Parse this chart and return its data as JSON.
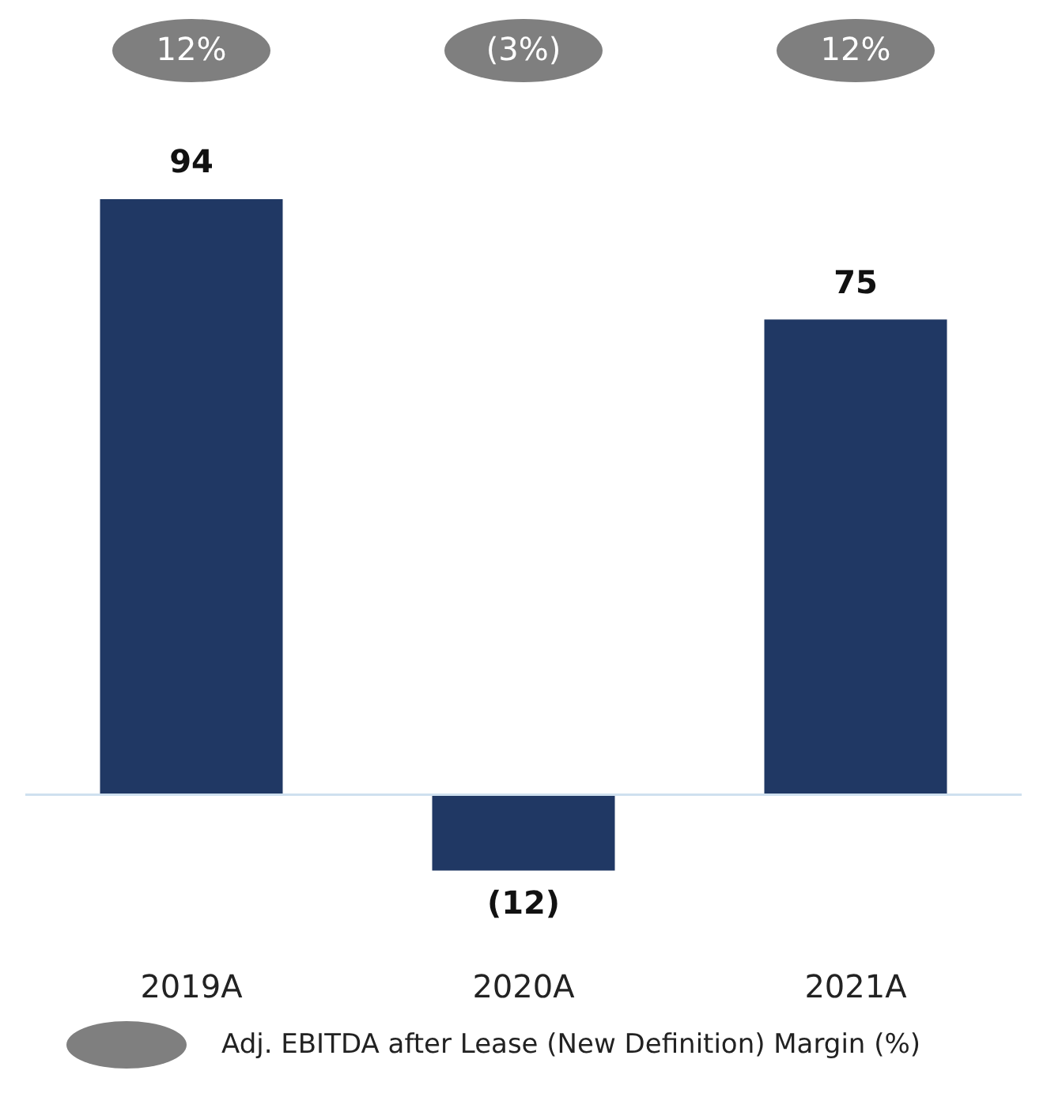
{
  "chart_data": {
    "type": "bar",
    "categories": [
      "2019A",
      "2020A",
      "2021A"
    ],
    "series": [
      {
        "color": "#203864",
        "values": [
          94,
          -12,
          75
        ],
        "value_labels": [
          "94",
          "(12)",
          "75"
        ]
      }
    ],
    "annotations": [
      "12%",
      "(3%)",
      "12%",
      "Adj. EBITDA after Lease (New Definition) Margin (%)"
    ],
    "grid": false,
    "tick_labels": "x"
  }
}
